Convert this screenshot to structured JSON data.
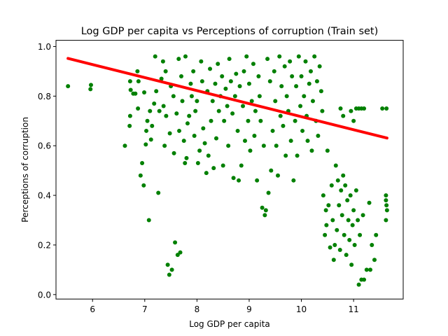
{
  "chart_data": {
    "type": "scatter",
    "title": "Log GDP per capita vs Perceptions of corruption (Train set)",
    "xlabel": "Log GDP per capita",
    "ylabel": "Perceptions of corruption",
    "xlim": [
      5.3,
      11.95
    ],
    "ylim": [
      -0.018,
      1.025
    ],
    "xticks": [
      6,
      7,
      8,
      9,
      10,
      11
    ],
    "yticks": [
      0.0,
      0.2,
      0.4,
      0.6,
      0.8,
      1.0
    ],
    "yticklabels": [
      "0.0",
      "0.2",
      "0.4",
      "0.6",
      "0.8",
      "1.0"
    ],
    "grid": false,
    "colors": {
      "points": "#008000",
      "fit_line": "#ff0000"
    },
    "series": [
      {
        "kind": "points",
        "color": "#008000",
        "points": [
          [
            5.53,
            0.84
          ],
          [
            5.97,
            0.845
          ],
          [
            5.96,
            0.828
          ],
          [
            6.62,
            0.6
          ],
          [
            6.72,
            0.86
          ],
          [
            6.73,
            0.825
          ],
          [
            6.72,
            0.72
          ],
          [
            6.71,
            0.68
          ],
          [
            6.78,
            0.81
          ],
          [
            6.82,
            0.81
          ],
          [
            6.86,
            0.9
          ],
          [
            6.88,
            0.86
          ],
          [
            6.87,
            0.75
          ],
          [
            6.92,
            0.48
          ],
          [
            6.95,
            0.53
          ],
          [
            6.98,
            0.44
          ],
          [
            6.99,
            0.815
          ],
          [
            7.02,
            0.605
          ],
          [
            7.03,
            0.66
          ],
          [
            7.05,
            0.7
          ],
          [
            7.08,
            0.3
          ],
          [
            7.1,
            0.74
          ],
          [
            7.12,
            0.625
          ],
          [
            7.14,
            0.68
          ],
          [
            7.18,
            0.77
          ],
          [
            7.2,
            0.96
          ],
          [
            7.22,
            0.82
          ],
          [
            7.26,
            0.41
          ],
          [
            7.28,
            0.74
          ],
          [
            7.32,
            0.87
          ],
          [
            7.35,
            0.94
          ],
          [
            7.36,
            0.76
          ],
          [
            7.38,
            0.6
          ],
          [
            7.4,
            0.9
          ],
          [
            7.41,
            0.72
          ],
          [
            7.44,
            0.12
          ],
          [
            7.47,
            0.08
          ],
          [
            7.48,
            0.65
          ],
          [
            7.5,
            0.84
          ],
          [
            7.52,
            0.1
          ],
          [
            7.55,
            0.8
          ],
          [
            7.56,
            0.57
          ],
          [
            7.58,
            0.21
          ],
          [
            7.61,
            0.73
          ],
          [
            7.63,
            0.16
          ],
          [
            7.65,
            0.95
          ],
          [
            7.66,
            0.66
          ],
          [
            7.68,
            0.17
          ],
          [
            7.7,
            0.88
          ],
          [
            7.72,
            0.78
          ],
          [
            7.75,
            0.62
          ],
          [
            7.77,
            0.53
          ],
          [
            7.78,
            0.96
          ],
          [
            7.8,
            0.55
          ],
          [
            7.82,
            0.69
          ],
          [
            7.85,
            0.72
          ],
          [
            7.88,
            0.85
          ],
          [
            7.9,
            0.8
          ],
          [
            7.93,
            0.9
          ],
          [
            7.95,
            0.64
          ],
          [
            7.97,
            0.74
          ],
          [
            8.0,
            0.78
          ],
          [
            8.02,
            0.53
          ],
          [
            8.05,
            0.58
          ],
          [
            8.08,
            0.94
          ],
          [
            8.1,
            0.86
          ],
          [
            8.12,
            0.67
          ],
          [
            8.15,
            0.61
          ],
          [
            8.18,
            0.49
          ],
          [
            8.2,
            0.82
          ],
          [
            8.22,
            0.56
          ],
          [
            8.25,
            0.91
          ],
          [
            8.27,
            0.7
          ],
          [
            8.3,
            0.78
          ],
          [
            8.32,
            0.51
          ],
          [
            8.35,
            0.85
          ],
          [
            8.37,
            0.63
          ],
          [
            8.4,
            0.93
          ],
          [
            8.42,
            0.74
          ],
          [
            8.45,
            0.8
          ],
          [
            8.48,
            0.88
          ],
          [
            8.5,
            0.52
          ],
          [
            8.52,
            0.7
          ],
          [
            8.55,
            0.83
          ],
          [
            8.58,
            0.76
          ],
          [
            8.6,
            0.6
          ],
          [
            8.62,
            0.95
          ],
          [
            8.65,
            0.86
          ],
          [
            8.68,
            0.73
          ],
          [
            8.7,
            0.47
          ],
          [
            8.73,
            0.8
          ],
          [
            8.75,
            0.89
          ],
          [
            8.78,
            0.66
          ],
          [
            8.8,
            0.46
          ],
          [
            8.82,
            0.84
          ],
          [
            8.85,
            0.52
          ],
          [
            8.88,
            0.76
          ],
          [
            8.9,
            0.9
          ],
          [
            8.92,
            0.62
          ],
          [
            8.95,
            0.96
          ],
          [
            8.98,
            0.7
          ],
          [
            9.0,
            0.85
          ],
          [
            9.02,
            0.58
          ],
          [
            9.05,
            0.78
          ],
          [
            9.08,
            0.93
          ],
          [
            9.1,
            0.64
          ],
          [
            9.12,
            0.74
          ],
          [
            9.15,
            0.46
          ],
          [
            9.18,
            0.88
          ],
          [
            9.2,
            0.8
          ],
          [
            9.22,
            0.7
          ],
          [
            9.25,
            0.35
          ],
          [
            9.28,
            0.6
          ],
          [
            9.3,
            0.32
          ],
          [
            9.32,
            0.34
          ],
          [
            9.35,
            0.95
          ],
          [
            9.37,
            0.41
          ],
          [
            9.4,
            0.86
          ],
          [
            9.42,
            0.5
          ],
          [
            9.45,
            0.66
          ],
          [
            9.48,
            0.9
          ],
          [
            9.5,
            0.78
          ],
          [
            9.52,
            0.6
          ],
          [
            9.55,
            0.48
          ],
          [
            9.58,
            0.96
          ],
          [
            9.6,
            0.72
          ],
          [
            9.62,
            0.84
          ],
          [
            9.65,
            0.68
          ],
          [
            9.68,
            0.92
          ],
          [
            9.7,
            0.56
          ],
          [
            9.72,
            0.8
          ],
          [
            9.75,
            0.74
          ],
          [
            9.78,
            0.94
          ],
          [
            9.8,
            0.62
          ],
          [
            9.82,
            0.88
          ],
          [
            9.85,
            0.46
          ],
          [
            9.88,
            0.7
          ],
          [
            9.9,
            0.84
          ],
          [
            9.92,
            0.56
          ],
          [
            9.95,
            0.96
          ],
          [
            9.98,
            0.76
          ],
          [
            10.0,
            0.88
          ],
          [
            10.02,
            0.66
          ],
          [
            10.05,
            0.8
          ],
          [
            10.08,
            0.94
          ],
          [
            10.1,
            0.72
          ],
          [
            10.12,
            0.62
          ],
          [
            10.15,
            0.85
          ],
          [
            10.18,
            0.9
          ],
          [
            10.2,
            0.58
          ],
          [
            10.22,
            0.78
          ],
          [
            10.25,
            0.96
          ],
          [
            10.28,
            0.7
          ],
          [
            10.3,
            0.86
          ],
          [
            10.32,
            0.64
          ],
          [
            10.35,
            0.92
          ],
          [
            10.38,
            0.82
          ],
          [
            10.4,
            0.74
          ],
          [
            10.42,
            0.4
          ],
          [
            10.45,
            0.24
          ],
          [
            10.47,
            0.34
          ],
          [
            10.48,
            0.28
          ],
          [
            10.5,
            0.58
          ],
          [
            10.52,
            0.36
          ],
          [
            10.55,
            0.19
          ],
          [
            10.58,
            0.44
          ],
          [
            10.6,
            0.3
          ],
          [
            10.62,
            0.14
          ],
          [
            10.64,
            0.2
          ],
          [
            10.66,
            0.52
          ],
          [
            10.68,
            0.26
          ],
          [
            10.7,
            0.46
          ],
          [
            10.72,
            0.36
          ],
          [
            10.74,
            0.18
          ],
          [
            10.76,
            0.42
          ],
          [
            10.78,
            0.32
          ],
          [
            10.8,
            0.48
          ],
          [
            10.82,
            0.24
          ],
          [
            10.84,
            0.44
          ],
          [
            10.86,
            0.16
          ],
          [
            10.88,
            0.38
          ],
          [
            10.9,
            0.3
          ],
          [
            10.92,
            0.22
          ],
          [
            10.94,
            0.4
          ],
          [
            10.96,
            0.12
          ],
          [
            10.98,
            0.28
          ],
          [
            11.0,
            0.34
          ],
          [
            11.02,
            0.2
          ],
          [
            11.05,
            0.42
          ],
          [
            11.08,
            0.3
          ],
          [
            11.1,
            0.04
          ],
          [
            11.12,
            0.24
          ],
          [
            11.15,
            0.06
          ],
          [
            11.18,
            0.32
          ],
          [
            11.2,
            0.06
          ],
          [
            11.25,
            0.1
          ],
          [
            11.3,
            0.37
          ],
          [
            11.32,
            0.1
          ],
          [
            11.35,
            0.2
          ],
          [
            11.4,
            0.14
          ],
          [
            11.43,
            0.24
          ],
          [
            11.55,
            0.75
          ],
          [
            11.63,
            0.75
          ],
          [
            11.62,
            0.4
          ],
          [
            11.62,
            0.38
          ],
          [
            11.63,
            0.36
          ],
          [
            11.64,
            0.34
          ],
          [
            11.62,
            0.3
          ],
          [
            11.1,
            0.75
          ],
          [
            11.15,
            0.75
          ],
          [
            11.2,
            0.75
          ],
          [
            11.05,
            0.75
          ],
          [
            10.75,
            0.75
          ],
          [
            10.8,
            0.72
          ],
          [
            10.95,
            0.74
          ],
          [
            11.0,
            0.7
          ]
        ]
      },
      {
        "kind": "fit_line",
        "color": "#ff0000",
        "points": [
          [
            5.53,
            0.952
          ],
          [
            11.64,
            0.631
          ]
        ]
      }
    ]
  }
}
